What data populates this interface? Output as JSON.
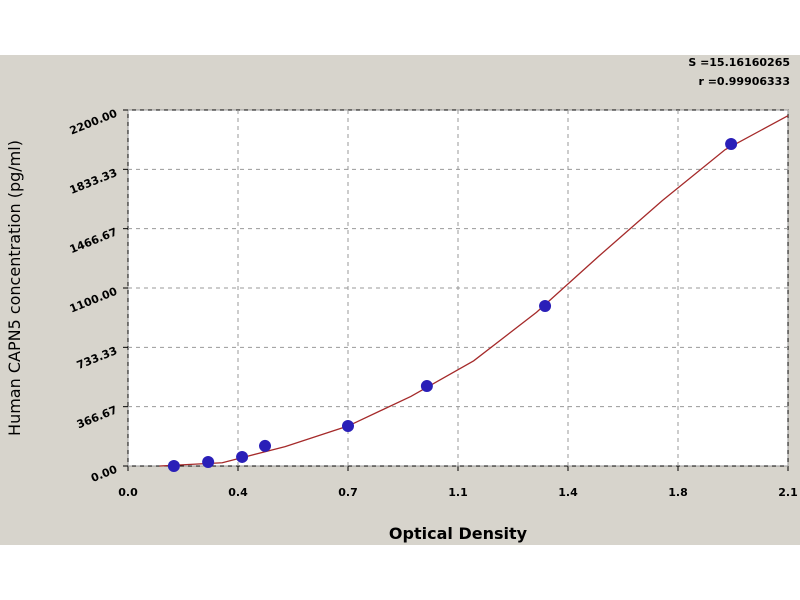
{
  "chart_data": {
    "type": "scatter",
    "x_label": "Optical Density",
    "y_label": "Human CAPN5 concentration (pg/ml)",
    "annotations": [
      "S =15.16160265",
      "r =0.99906333"
    ],
    "xlim": [
      0,
      2.1
    ],
    "ylim": [
      0,
      2200
    ],
    "xticks": [
      {
        "value": 0,
        "label": "0.0"
      },
      {
        "value": 0.35,
        "label": "0.4"
      },
      0.7,
      {
        "value": 1.05,
        "label": "1.1"
      },
      1.4,
      {
        "value": 1.75,
        "label": "1.8"
      },
      2.1
    ],
    "yticks": [
      {
        "value": 0,
        "label": "0.00"
      },
      366.67,
      733.33,
      {
        "value": 1100,
        "label": "1100.00"
      },
      1466.67,
      1833.33,
      {
        "value": 2200,
        "label": "2200.00"
      }
    ],
    "grid": true,
    "series": [
      {
        "color": "#2a1fb8",
        "mode": "markers",
        "x": [
          0.146,
          0.255,
          0.363,
          0.436,
          0.7,
          0.951,
          1.327,
          1.919
        ],
        "values": [
          0,
          25,
          56,
          124,
          247,
          494,
          989,
          1990
        ]
      },
      {
        "color": "#a52a2a",
        "mode": "line",
        "x": [
          0.1,
          0.3,
          0.5,
          0.7,
          0.9,
          1.1,
          1.3,
          1.5,
          1.7,
          1.9,
          2.1
        ],
        "values": [
          0,
          20,
          120,
          247,
          430,
          650,
          950,
          1300,
          1640,
          1955,
          2165
        ]
      }
    ]
  }
}
